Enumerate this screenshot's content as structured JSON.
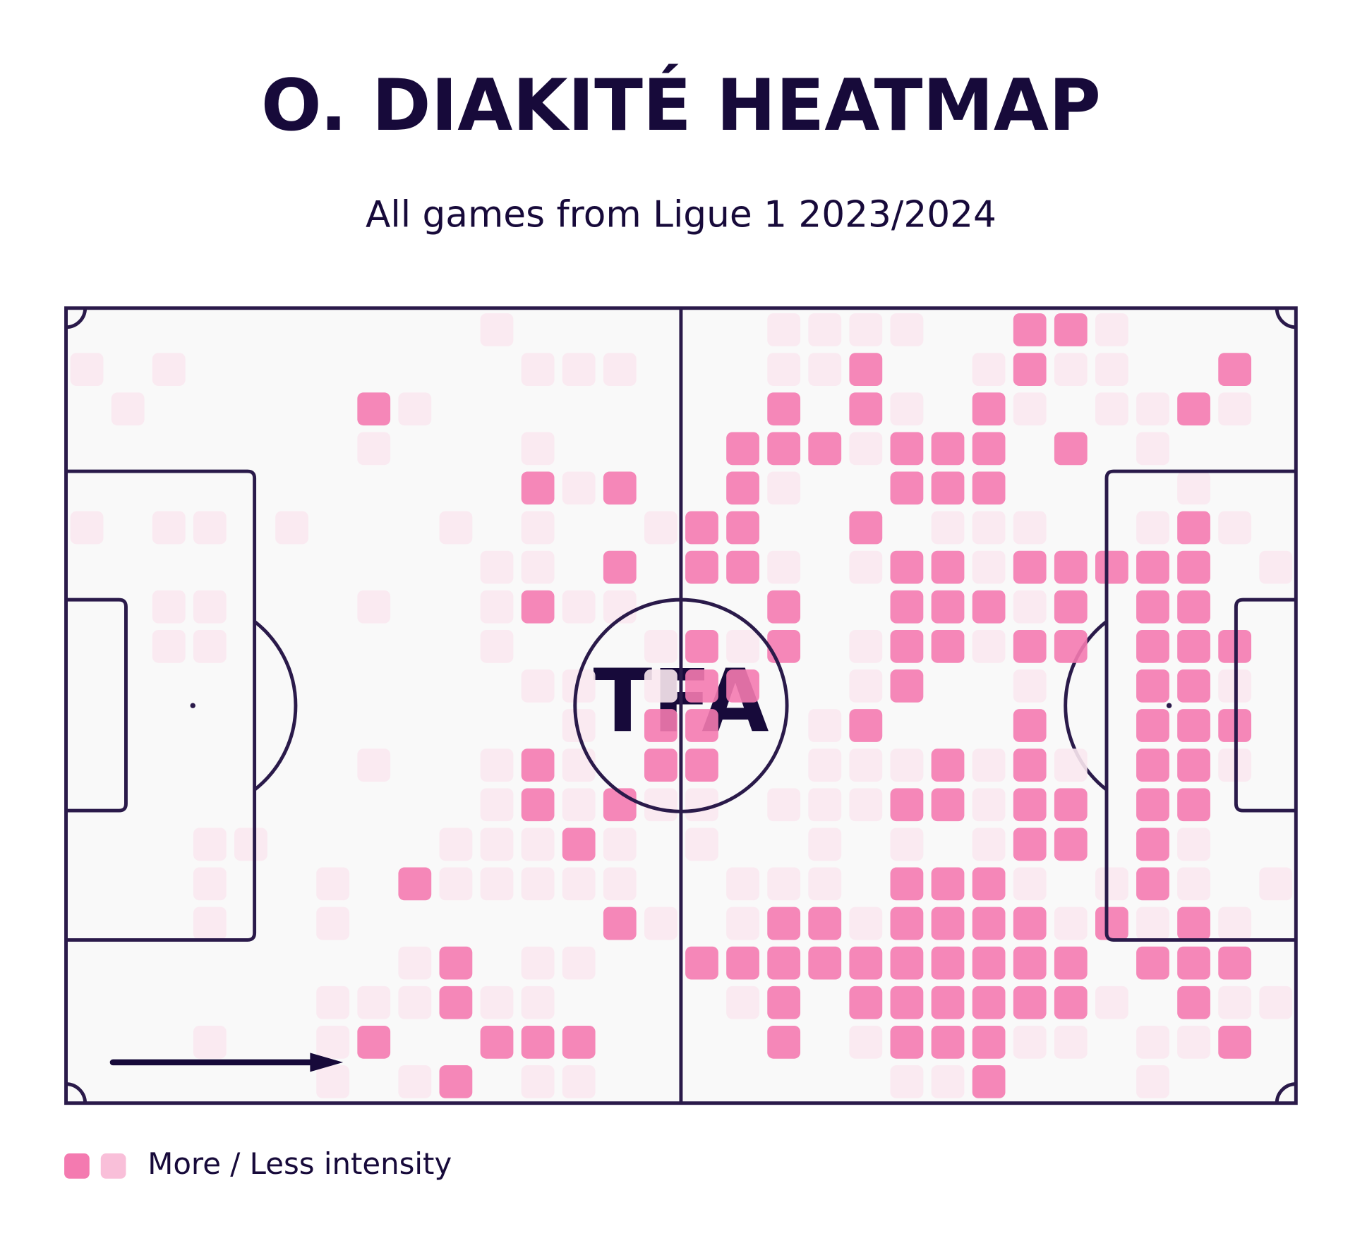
{
  "chart_data": {
    "type": "heatmap",
    "title": "O. DIAKITÉ HEATMAP",
    "subtitle": "All games from Ligue 1 2023/2024",
    "logo": "TFA",
    "colors": [
      "#f9e8ef",
      "#f47ab0"
    ],
    "legend": {
      "label": "More / Less intensity",
      "colors": [
        "#f47ab0",
        "#f9bfd9"
      ]
    },
    "values": [
      [
        0,
        0,
        0,
        0,
        0,
        0,
        0,
        0,
        0,
        0,
        1,
        0,
        0,
        0,
        0,
        0,
        0,
        1,
        1,
        1,
        1,
        0,
        0,
        2,
        2,
        1,
        0,
        0,
        0,
        0
      ],
      [
        1,
        0,
        1,
        0,
        0,
        0,
        0,
        0,
        0,
        0,
        0,
        1,
        1,
        1,
        0,
        0,
        0,
        1,
        1,
        2,
        0,
        0,
        1,
        2,
        1,
        1,
        0,
        0,
        2,
        0
      ],
      [
        0,
        1,
        0,
        0,
        0,
        0,
        0,
        2,
        1,
        0,
        0,
        0,
        0,
        0,
        0,
        0,
        0,
        2,
        0,
        2,
        1,
        0,
        2,
        1,
        0,
        1,
        1,
        2,
        1,
        0
      ],
      [
        0,
        0,
        0,
        0,
        0,
        0,
        0,
        1,
        0,
        0,
        0,
        1,
        0,
        0,
        0,
        0,
        2,
        2,
        2,
        1,
        2,
        2,
        2,
        0,
        2,
        0,
        1,
        0,
        0,
        0
      ],
      [
        0,
        0,
        0,
        0,
        0,
        0,
        0,
        0,
        0,
        0,
        0,
        2,
        1,
        2,
        0,
        0,
        2,
        1,
        0,
        0,
        2,
        2,
        2,
        0,
        0,
        0,
        0,
        1,
        0,
        0
      ],
      [
        1,
        0,
        1,
        1,
        0,
        1,
        0,
        0,
        0,
        1,
        0,
        1,
        0,
        0,
        1,
        2,
        2,
        0,
        0,
        2,
        0,
        1,
        1,
        1,
        0,
        0,
        1,
        2,
        1,
        0
      ],
      [
        0,
        0,
        0,
        0,
        0,
        0,
        0,
        0,
        0,
        0,
        1,
        1,
        0,
        2,
        0,
        2,
        2,
        1,
        0,
        1,
        2,
        2,
        1,
        2,
        2,
        2,
        2,
        2,
        0,
        1
      ],
      [
        0,
        0,
        1,
        1,
        0,
        0,
        0,
        1,
        0,
        0,
        1,
        2,
        1,
        1,
        0,
        0,
        0,
        2,
        0,
        0,
        2,
        2,
        2,
        1,
        2,
        0,
        2,
        2,
        0,
        0
      ],
      [
        0,
        0,
        1,
        1,
        0,
        0,
        0,
        0,
        0,
        0,
        1,
        0,
        0,
        0,
        1,
        2,
        1,
        2,
        0,
        1,
        2,
        2,
        1,
        2,
        2,
        0,
        2,
        2,
        2,
        0
      ],
      [
        0,
        0,
        0,
        0,
        0,
        0,
        0,
        0,
        0,
        0,
        0,
        1,
        1,
        0,
        1,
        2,
        2,
        0,
        0,
        1,
        2,
        0,
        0,
        1,
        0,
        0,
        2,
        2,
        1,
        0
      ],
      [
        0,
        0,
        0,
        0,
        0,
        0,
        0,
        0,
        0,
        0,
        0,
        0,
        1,
        0,
        2,
        2,
        0,
        0,
        1,
        2,
        0,
        0,
        0,
        2,
        0,
        0,
        2,
        2,
        2,
        0
      ],
      [
        0,
        0,
        0,
        0,
        0,
        0,
        0,
        1,
        0,
        0,
        1,
        2,
        1,
        0,
        2,
        2,
        0,
        0,
        1,
        1,
        1,
        2,
        1,
        2,
        1,
        0,
        2,
        2,
        1,
        0
      ],
      [
        0,
        0,
        0,
        0,
        0,
        0,
        0,
        0,
        0,
        0,
        1,
        2,
        1,
        2,
        1,
        1,
        0,
        1,
        1,
        1,
        2,
        2,
        1,
        2,
        2,
        0,
        2,
        2,
        0,
        0
      ],
      [
        0,
        0,
        0,
        1,
        1,
        0,
        0,
        0,
        0,
        1,
        1,
        1,
        2,
        1,
        0,
        1,
        0,
        0,
        1,
        0,
        1,
        0,
        1,
        2,
        2,
        0,
        2,
        1,
        0,
        0
      ],
      [
        0,
        0,
        0,
        1,
        0,
        0,
        1,
        0,
        2,
        1,
        1,
        1,
        1,
        1,
        0,
        0,
        1,
        1,
        1,
        0,
        2,
        2,
        2,
        1,
        0,
        1,
        2,
        1,
        0,
        1
      ],
      [
        0,
        0,
        0,
        1,
        0,
        0,
        1,
        0,
        0,
        0,
        0,
        0,
        0,
        2,
        1,
        0,
        1,
        2,
        2,
        1,
        2,
        2,
        2,
        2,
        1,
        2,
        1,
        2,
        1,
        0
      ],
      [
        0,
        0,
        0,
        0,
        0,
        0,
        0,
        0,
        1,
        2,
        0,
        1,
        1,
        0,
        0,
        2,
        2,
        2,
        2,
        2,
        2,
        2,
        2,
        2,
        2,
        0,
        2,
        2,
        2,
        0
      ],
      [
        0,
        0,
        0,
        0,
        0,
        0,
        1,
        1,
        1,
        2,
        1,
        1,
        0,
        0,
        0,
        0,
        1,
        2,
        0,
        2,
        2,
        2,
        2,
        2,
        2,
        1,
        0,
        2,
        1,
        1
      ],
      [
        0,
        0,
        0,
        1,
        0,
        0,
        1,
        2,
        0,
        0,
        2,
        2,
        2,
        0,
        0,
        0,
        0,
        2,
        0,
        1,
        2,
        2,
        2,
        1,
        1,
        0,
        1,
        1,
        2,
        0
      ],
      [
        0,
        0,
        0,
        0,
        0,
        0,
        1,
        0,
        1,
        2,
        0,
        1,
        1,
        0,
        0,
        0,
        0,
        0,
        0,
        0,
        1,
        1,
        2,
        0,
        0,
        0,
        1,
        0,
        0,
        0
      ]
    ]
  }
}
